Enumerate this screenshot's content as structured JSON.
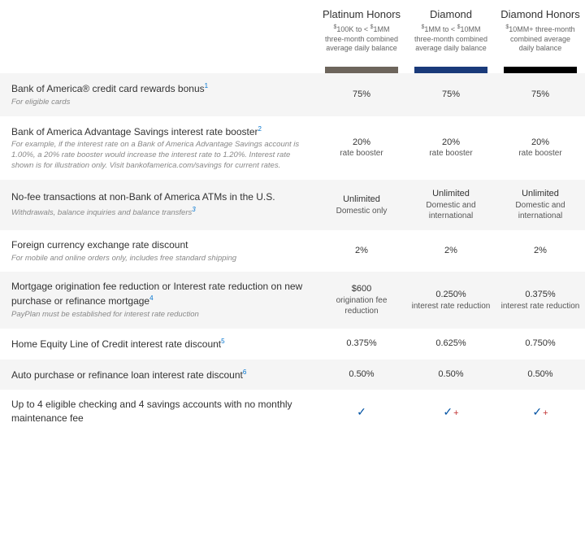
{
  "tiers": [
    {
      "name": "Platinum Honors",
      "desc": "$100K to < $1MM three-month combined average daily balance",
      "bar_color": "#6d655c"
    },
    {
      "name": "Diamond",
      "desc": "$1MM to < $10MM three-month combined average daily balance",
      "bar_color": "#1a3a7a"
    },
    {
      "name": "Diamond Honors",
      "desc": "$10MM+ three-month combined average daily balance",
      "bar_color": "#000000"
    }
  ],
  "rows": [
    {
      "title": "Bank of America® credit card rewards bonus",
      "footnote": "1",
      "sub": "For eligible cards",
      "cells": [
        "75%",
        "75%",
        "75%"
      ]
    },
    {
      "title": "Bank of America Advantage Savings interest rate booster",
      "footnote": "2",
      "sub": "For example, if the interest rate on a Bank of America Advantage Savings account is 1.00%, a 20% rate booster would increase the interest rate to 1.20%. Interest rate shown is for illustration only. Visit bankofamerica.com/savings for current rates.",
      "cells": [
        {
          "main": "20%",
          "sub": "rate booster"
        },
        {
          "main": "20%",
          "sub": "rate booster"
        },
        {
          "main": "20%",
          "sub": "rate booster"
        }
      ]
    },
    {
      "title": "No-fee transactions at non-Bank of America ATMs in the U.S.",
      "sub": "Withdrawals, balance inquiries and balance transfers",
      "sub_footnote": "3",
      "cells": [
        {
          "main": "Unlimited",
          "sub": "Domestic only"
        },
        {
          "main": "Unlimited",
          "sub": "Domestic and international"
        },
        {
          "main": "Unlimited",
          "sub": "Domestic and international"
        }
      ]
    },
    {
      "title": "Foreign currency exchange rate discount",
      "sub": "For mobile and online orders only, includes free standard shipping",
      "cells": [
        "2%",
        "2%",
        "2%"
      ]
    },
    {
      "title": "Mortgage origination fee reduction or Interest rate reduction on new purchase or refinance mortgage",
      "footnote": "4",
      "sub": "PayPlan must be established for interest rate reduction",
      "cells": [
        {
          "main": "$600",
          "sub": "origination fee reduction"
        },
        {
          "main": "0.250%",
          "sub": "interest rate reduction"
        },
        {
          "main": "0.375%",
          "sub": "interest rate reduction"
        }
      ]
    },
    {
      "title": "Home Equity Line of Credit interest rate discount",
      "footnote": "5",
      "cells": [
        "0.375%",
        "0.625%",
        "0.750%"
      ]
    },
    {
      "title": "Auto purchase or refinance loan interest rate discount",
      "footnote": "6",
      "cells": [
        "0.50%",
        "0.50%",
        "0.50%"
      ]
    },
    {
      "title": "Up to 4 eligible checking and 4 savings accounts with no monthly maintenance fee",
      "cells": [
        {
          "check": true
        },
        {
          "check": true,
          "plus": true
        },
        {
          "check": true,
          "plus": true
        }
      ]
    }
  ],
  "style": {
    "odd_bg": "#f5f5f5",
    "even_bg": "#ffffff",
    "footnote_color": "#0073cf",
    "check_color": "#0052a3",
    "plus_color": "#c03030"
  }
}
